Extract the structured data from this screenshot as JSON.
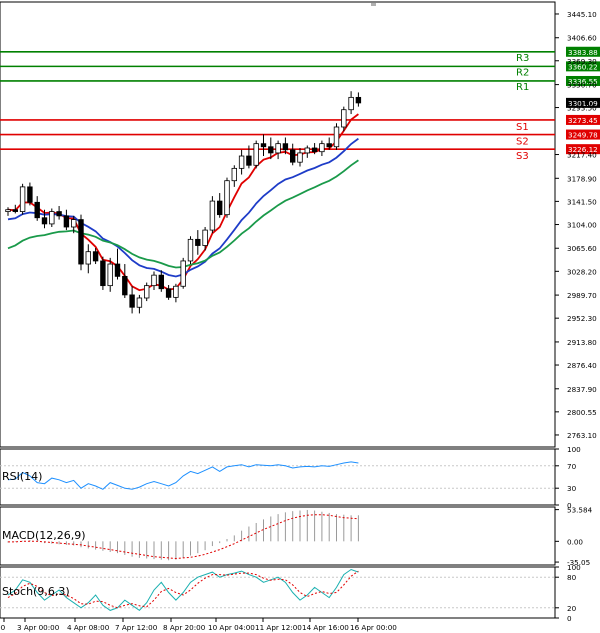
{
  "chart_data": {
    "type": "candlestick",
    "instrument_note": "Gold-like price chart with support/resistance levels",
    "x_tick_labels": [
      "00",
      "3 Apr 00:00",
      "4 Apr 08:00",
      "7 Apr 12:00",
      "8 Apr 20:00",
      "10 Apr 04:00",
      "11 Apr 12:00",
      "14 Apr 16:00",
      "16 Apr 00:00"
    ],
    "price_axis": {
      "ylim": [
        2743.6,
        3464.5
      ],
      "tick_labels": [
        "3445.10",
        "3406.60",
        "3369.30",
        "3330.70",
        "3293.50",
        "3217.40",
        "3178.90",
        "3141.50",
        "3104.00",
        "3065.60",
        "3028.20",
        "2989.70",
        "2952.30",
        "2913.80",
        "2876.40",
        "2837.90",
        "2800.55",
        "2763.10"
      ]
    },
    "levels": [
      {
        "name": "R3",
        "value": 3383.88,
        "label": "3383.88",
        "color": "#008000"
      },
      {
        "name": "R2",
        "value": 3360.22,
        "label": "3360.22",
        "color": "#008000"
      },
      {
        "name": "R1",
        "value": 3336.55,
        "label": "3336.55",
        "color": "#008000"
      },
      {
        "name": "S1",
        "value": 3273.45,
        "label": "3273.45",
        "color": "#e00000"
      },
      {
        "name": "S2",
        "value": 3249.78,
        "label": "3249.78",
        "color": "#e00000"
      },
      {
        "name": "S3",
        "value": 3226.12,
        "label": "3226.12",
        "color": "#e00000"
      }
    ],
    "last_price": {
      "value": 3301.09,
      "label": "3301.09"
    },
    "candles": [
      {
        "o": 3125,
        "h": 3132,
        "l": 3118,
        "c": 3128
      },
      {
        "o": 3128,
        "h": 3136,
        "l": 3122,
        "c": 3125
      },
      {
        "o": 3125,
        "h": 3170,
        "l": 3120,
        "c": 3165
      },
      {
        "o": 3165,
        "h": 3172,
        "l": 3135,
        "c": 3140
      },
      {
        "o": 3140,
        "h": 3150,
        "l": 3110,
        "c": 3115
      },
      {
        "o": 3115,
        "h": 3128,
        "l": 3098,
        "c": 3105
      },
      {
        "o": 3105,
        "h": 3130,
        "l": 3100,
        "c": 3125
      },
      {
        "o": 3125,
        "h": 3134,
        "l": 3112,
        "c": 3118
      },
      {
        "o": 3118,
        "h": 3128,
        "l": 3095,
        "c": 3100
      },
      {
        "o": 3100,
        "h": 3118,
        "l": 3090,
        "c": 3112
      },
      {
        "o": 3112,
        "h": 3120,
        "l": 3030,
        "c": 3040
      },
      {
        "o": 3040,
        "h": 3072,
        "l": 3025,
        "c": 3060
      },
      {
        "o": 3060,
        "h": 3066,
        "l": 3040,
        "c": 3045
      },
      {
        "o": 3045,
        "h": 3052,
        "l": 2998,
        "c": 3005
      },
      {
        "o": 3005,
        "h": 3050,
        "l": 2995,
        "c": 3040
      },
      {
        "o": 3040,
        "h": 3065,
        "l": 3015,
        "c": 3020
      },
      {
        "o": 3020,
        "h": 3040,
        "l": 2985,
        "c": 2990
      },
      {
        "o": 2990,
        "h": 3004,
        "l": 2960,
        "c": 2970
      },
      {
        "o": 2970,
        "h": 2990,
        "l": 2960,
        "c": 2985
      },
      {
        "o": 2985,
        "h": 3010,
        "l": 2980,
        "c": 3005
      },
      {
        "o": 3005,
        "h": 3028,
        "l": 2998,
        "c": 3022
      },
      {
        "o": 3022,
        "h": 3030,
        "l": 2995,
        "c": 3000
      },
      {
        "o": 3000,
        "h": 3006,
        "l": 2982,
        "c": 2986
      },
      {
        "o": 2986,
        "h": 3008,
        "l": 2978,
        "c": 3004
      },
      {
        "o": 3004,
        "h": 3050,
        "l": 3000,
        "c": 3045
      },
      {
        "o": 3045,
        "h": 3085,
        "l": 3040,
        "c": 3080
      },
      {
        "o": 3080,
        "h": 3095,
        "l": 3055,
        "c": 3070
      },
      {
        "o": 3070,
        "h": 3100,
        "l": 3062,
        "c": 3095
      },
      {
        "o": 3095,
        "h": 3150,
        "l": 3090,
        "c": 3142
      },
      {
        "o": 3142,
        "h": 3155,
        "l": 3115,
        "c": 3120
      },
      {
        "o": 3120,
        "h": 3180,
        "l": 3115,
        "c": 3175
      },
      {
        "o": 3175,
        "h": 3200,
        "l": 3165,
        "c": 3195
      },
      {
        "o": 3195,
        "h": 3225,
        "l": 3185,
        "c": 3215
      },
      {
        "o": 3215,
        "h": 3232,
        "l": 3195,
        "c": 3200
      },
      {
        "o": 3200,
        "h": 3240,
        "l": 3195,
        "c": 3235
      },
      {
        "o": 3235,
        "h": 3250,
        "l": 3215,
        "c": 3230
      },
      {
        "o": 3230,
        "h": 3245,
        "l": 3210,
        "c": 3220
      },
      {
        "o": 3220,
        "h": 3240,
        "l": 3210,
        "c": 3235
      },
      {
        "o": 3235,
        "h": 3245,
        "l": 3218,
        "c": 3225
      },
      {
        "o": 3225,
        "h": 3235,
        "l": 3200,
        "c": 3205
      },
      {
        "o": 3205,
        "h": 3228,
        "l": 3198,
        "c": 3220
      },
      {
        "o": 3220,
        "h": 3232,
        "l": 3212,
        "c": 3228
      },
      {
        "o": 3228,
        "h": 3236,
        "l": 3218,
        "c": 3222
      },
      {
        "o": 3222,
        "h": 3240,
        "l": 3215,
        "c": 3235
      },
      {
        "o": 3235,
        "h": 3245,
        "l": 3225,
        "c": 3230
      },
      {
        "o": 3230,
        "h": 3268,
        "l": 3225,
        "c": 3262
      },
      {
        "o": 3262,
        "h": 3295,
        "l": 3255,
        "c": 3290
      },
      {
        "o": 3290,
        "h": 3320,
        "l": 3283,
        "c": 3310
      },
      {
        "o": 3310,
        "h": 3318,
        "l": 3295,
        "c": 3301
      }
    ],
    "indicators": {
      "rsi": {
        "label": "RSI(14)",
        "levels": [
          "100",
          "70",
          "30",
          "0"
        ],
        "range": [
          0,
          100
        ],
        "values": [
          45,
          46,
          58,
          52,
          40,
          38,
          48,
          45,
          40,
          44,
          30,
          38,
          34,
          28,
          40,
          35,
          30,
          28,
          32,
          38,
          42,
          38,
          34,
          40,
          52,
          60,
          56,
          62,
          68,
          60,
          68,
          70,
          72,
          68,
          72,
          71,
          70,
          72,
          70,
          66,
          68,
          69,
          68,
          70,
          69,
          72,
          75,
          77,
          75
        ]
      },
      "macd": {
        "label": "MACD(12,26,9)",
        "levels": [
          "53.584",
          "0.00",
          "-35.05"
        ],
        "range": [
          -40,
          58
        ],
        "hist": [
          -2,
          -1,
          1,
          2,
          0,
          -3,
          -4,
          -5,
          -6,
          -7,
          -10,
          -12,
          -14,
          -16,
          -18,
          -20,
          -23,
          -26,
          -28,
          -29,
          -30,
          -31,
          -32,
          -31,
          -28,
          -24,
          -20,
          -15,
          -8,
          -3,
          4,
          10,
          18,
          25,
          31,
          37,
          42,
          46,
          49,
          51,
          52,
          53,
          52,
          50,
          48,
          46,
          45,
          44,
          44
        ],
        "signal": [
          -1,
          -1,
          0,
          0,
          0,
          -1,
          -2,
          -3,
          -4,
          -5,
          -6,
          -8,
          -10,
          -12,
          -14,
          -16,
          -18,
          -20,
          -22,
          -24,
          -26,
          -27,
          -28,
          -29,
          -28,
          -27,
          -25,
          -22,
          -18,
          -14,
          -9,
          -4,
          2,
          8,
          14,
          20,
          25,
          30,
          35,
          39,
          42,
          44,
          45,
          45,
          44,
          42,
          40,
          39,
          38
        ]
      },
      "stoch": {
        "label": "Stoch(9,6,3)",
        "levels": [
          "100",
          "80",
          "20",
          "0"
        ],
        "range": [
          0,
          100
        ],
        "k": [
          45,
          55,
          75,
          70,
          50,
          35,
          45,
          55,
          40,
          30,
          20,
          30,
          45,
          25,
          15,
          20,
          35,
          25,
          15,
          30,
          55,
          70,
          50,
          35,
          50,
          70,
          80,
          85,
          90,
          80,
          85,
          88,
          92,
          85,
          80,
          70,
          75,
          80,
          70,
          50,
          35,
          45,
          60,
          50,
          40,
          60,
          85,
          95,
          90
        ],
        "d": [
          40,
          48,
          62,
          68,
          62,
          50,
          44,
          47,
          45,
          38,
          28,
          27,
          33,
          32,
          25,
          20,
          25,
          28,
          24,
          22,
          35,
          52,
          58,
          50,
          45,
          55,
          68,
          78,
          85,
          85,
          84,
          86,
          88,
          88,
          85,
          78,
          74,
          76,
          75,
          65,
          50,
          42,
          48,
          52,
          48,
          50,
          65,
          82,
          92
        ]
      }
    },
    "moving_averages": [
      {
        "name": "fast",
        "color": "#e00000"
      },
      {
        "name": "mid",
        "color": "#1e3cc8"
      },
      {
        "name": "slow",
        "color": "#1a9a4a"
      }
    ]
  }
}
